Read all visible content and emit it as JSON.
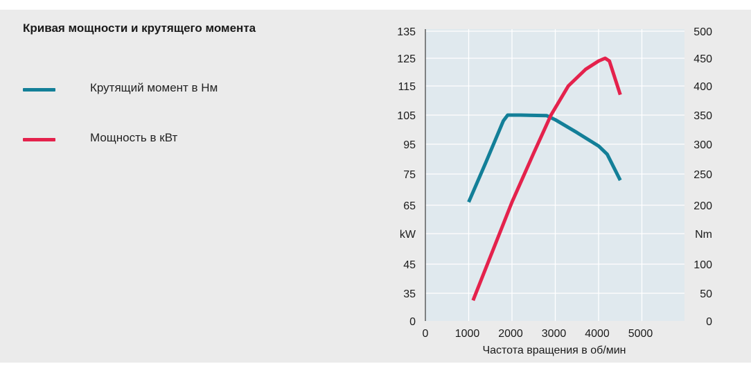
{
  "chart_data": {
    "type": "line",
    "title": "Кривая мощности и крутящего момента",
    "xlabel": "Частота вращения в об/мин",
    "x_ticks": [
      0,
      1000,
      2000,
      3000,
      4000,
      5000
    ],
    "left_axis_unit": "kW",
    "left_axis_ticks": [
      "135",
      "125",
      "115",
      "105",
      "95",
      "75",
      "65",
      "kW",
      "45",
      "35",
      "0"
    ],
    "right_axis_unit": "Nm",
    "right_axis_ticks": [
      "500",
      "450",
      "400",
      "350",
      "300",
      "250",
      "200",
      "Nm",
      "100",
      "50",
      "0"
    ],
    "grid": true,
    "legend_position": "left",
    "series": [
      {
        "name": "Крутящий момент в Нм",
        "axis": "right",
        "color": "#137f98",
        "x": [
          1000,
          1400,
          1800,
          1900,
          2200,
          2800,
          3000,
          3500,
          4000,
          4200,
          4500
        ],
        "y": [
          205,
          270,
          340,
          350,
          350,
          349,
          342,
          320,
          297,
          283,
          240
        ]
      },
      {
        "name": "Мощность в кВт",
        "axis": "left",
        "color": "#e4224c",
        "x": [
          1100,
          2000,
          2500,
          2900,
          3300,
          3700,
          4000,
          4150,
          4250,
          4500
        ],
        "y": [
          26,
          66,
          89,
          105,
          115,
          121,
          124,
          125,
          124,
          112
        ]
      }
    ]
  }
}
